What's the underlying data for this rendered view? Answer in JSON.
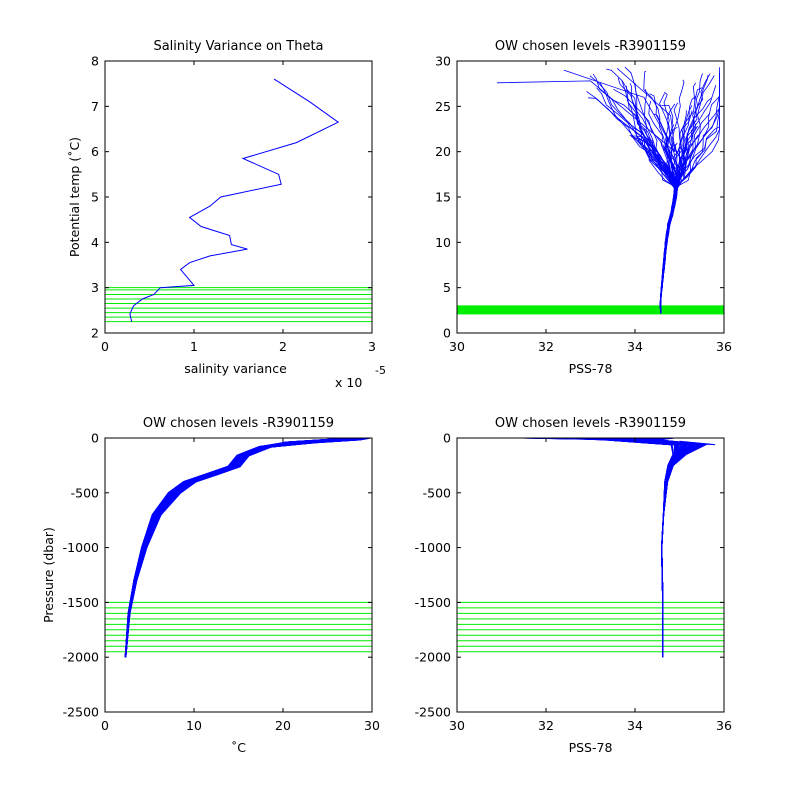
{
  "colors": {
    "profile": "#0000ff",
    "chosen_levels": "#00ee00",
    "axes": "#000000"
  },
  "chart_data": [
    {
      "type": "line",
      "title": "Salinity Variance on Theta",
      "xlabel": "salinity variance",
      "ylabel": "Potential temp (˚C)",
      "x_exponent_label": "x 10",
      "x_exponent": "-5",
      "xlim": [
        0,
        3
      ],
      "ylim": [
        2,
        8
      ],
      "xticks": [
        0,
        1,
        2,
        3
      ],
      "yticks": [
        2,
        3,
        4,
        5,
        6,
        7,
        8
      ],
      "series": [
        {
          "x": [
            1.9,
            2.3,
            2.62,
            2.15,
            1.55,
            1.95,
            1.98,
            1.3,
            1.18,
            0.95,
            1.08,
            1.4,
            1.42,
            1.6,
            1.18,
            0.95,
            0.85,
            1.0,
            0.62,
            0.55,
            0.42,
            0.32,
            0.28,
            0.3
          ],
          "y": [
            7.6,
            7.1,
            6.65,
            6.2,
            5.85,
            5.5,
            5.28,
            5.0,
            4.8,
            4.55,
            4.35,
            4.15,
            3.95,
            3.85,
            3.7,
            3.55,
            3.4,
            3.05,
            3.0,
            2.85,
            2.75,
            2.6,
            2.42,
            2.25
          ]
        }
      ],
      "chosen_levels": [
        2.25,
        2.35,
        2.45,
        2.55,
        2.65,
        2.75,
        2.85,
        2.95,
        3.0
      ]
    },
    {
      "type": "line",
      "title": "OW chosen levels -R3901159",
      "xlabel": "PSS-78",
      "ylabel": "",
      "xlim": [
        30,
        36
      ],
      "ylim": [
        0,
        30
      ],
      "xticks": [
        30,
        32,
        34,
        36
      ],
      "yticks": [
        0,
        5,
        10,
        15,
        20,
        25,
        30
      ],
      "profiles_description": "many Argo profiles (salinity vs potential temperature)",
      "chosen_levels": [
        2.1,
        2.2,
        2.3,
        2.4,
        2.5,
        2.6,
        2.7,
        2.8,
        2.9,
        3.0
      ]
    },
    {
      "type": "line",
      "title": "OW chosen levels -R3901159",
      "xlabel": "˚C",
      "ylabel": "Pressure (dbar)",
      "xlim": [
        0,
        30
      ],
      "ylim": [
        -2500,
        0
      ],
      "xticks": [
        0,
        10,
        20,
        30
      ],
      "yticks": [
        -2500,
        -2000,
        -1500,
        -1000,
        -500,
        0
      ],
      "profiles_description": "many Argo profiles (temperature vs pressure)",
      "chosen_levels": [
        -1500,
        -1550,
        -1600,
        -1650,
        -1700,
        -1750,
        -1800,
        -1850,
        -1900,
        -1950
      ]
    },
    {
      "type": "line",
      "title": "OW chosen levels -R3901159",
      "xlabel": "PSS-78",
      "ylabel": "",
      "xlim": [
        30,
        36
      ],
      "ylim": [
        -2500,
        0
      ],
      "xticks": [
        30,
        32,
        34,
        36
      ],
      "yticks": [
        -2500,
        -2000,
        -1500,
        -1000,
        -500,
        0
      ],
      "profiles_description": "many Argo profiles (salinity vs pressure)",
      "chosen_levels": [
        -1500,
        -1550,
        -1600,
        -1650,
        -1700,
        -1750,
        -1800,
        -1850,
        -1900,
        -1950
      ]
    }
  ]
}
